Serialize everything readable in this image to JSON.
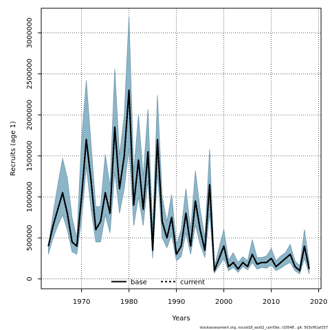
{
  "chart_data": {
    "type": "line",
    "xlabel": "Years",
    "ylabel": "Recruits (age 1)",
    "xlim": [
      1961.5,
      2020.5
    ],
    "ylim": [
      -120000,
      3300000
    ],
    "x_ticks": [
      1970,
      1980,
      1990,
      2000,
      2010,
      2020
    ],
    "y_ticks": [
      0,
      500000,
      1000000,
      1500000,
      2000000,
      2500000,
      3000000
    ],
    "grid": true,
    "legend_position": "bottom-center",
    "colors": {
      "band": "#8db5c8",
      "band_edge": "#6d99ae",
      "line": "#000000",
      "grid": "#333333"
    },
    "x": [
      1963,
      1964,
      1965,
      1966,
      1967,
      1968,
      1969,
      1970,
      1971,
      1972,
      1973,
      1974,
      1975,
      1976,
      1977,
      1978,
      1979,
      1980,
      1981,
      1982,
      1983,
      1984,
      1985,
      1986,
      1987,
      1988,
      1989,
      1990,
      1991,
      1992,
      1993,
      1994,
      1995,
      1996,
      1997,
      1998,
      1999,
      2000,
      2001,
      2002,
      2003,
      2004,
      2005,
      2006,
      2007,
      2008,
      2009,
      2010,
      2011,
      2012,
      2013,
      2014,
      2015,
      2016,
      2017,
      2018
    ],
    "series": [
      {
        "name": "base",
        "style": "solid",
        "values": [
          400000,
          650000,
          850000,
          1050000,
          800000,
          450000,
          400000,
          1000000,
          1700000,
          1200000,
          600000,
          700000,
          1050000,
          800000,
          1850000,
          1100000,
          1500000,
          2300000,
          900000,
          1450000,
          850000,
          1550000,
          350000,
          1700000,
          700000,
          500000,
          750000,
          300000,
          400000,
          800000,
          400000,
          950000,
          600000,
          350000,
          1150000,
          100000,
          250000,
          400000,
          150000,
          200000,
          120000,
          200000,
          150000,
          300000,
          180000,
          200000,
          200000,
          250000,
          150000,
          200000,
          250000,
          300000,
          150000,
          100000,
          400000,
          120000
        ]
      },
      {
        "name": "current",
        "style": "dashed",
        "values": [
          400000,
          650000,
          850000,
          1050000,
          800000,
          450000,
          400000,
          1000000,
          1700000,
          1200000,
          600000,
          700000,
          1050000,
          800000,
          1850000,
          1100000,
          1500000,
          2300000,
          900000,
          1450000,
          850000,
          1550000,
          350000,
          1700000,
          700000,
          500000,
          750000,
          300000,
          400000,
          800000,
          400000,
          950000,
          600000,
          350000,
          1150000,
          100000,
          250000,
          400000,
          150000,
          200000,
          120000,
          200000,
          150000,
          300000,
          180000,
          200000,
          200000,
          250000,
          150000,
          200000,
          250000,
          300000,
          150000,
          100000,
          400000,
          120000
        ]
      }
    ],
    "band_upper": [
      400000,
      800000,
      1150000,
      1470000,
      1230000,
      750000,
      500000,
      1700000,
      2420000,
      1650000,
      880000,
      880000,
      1520000,
      1130000,
      2560000,
      1500000,
      2000000,
      3200000,
      1300000,
      2000000,
      1250000,
      2070000,
      600000,
      2240000,
      1000000,
      700000,
      1030000,
      420000,
      600000,
      1100000,
      600000,
      1320000,
      850000,
      500000,
      1580000,
      150000,
      380000,
      600000,
      230000,
      320000,
      200000,
      270000,
      220000,
      480000,
      260000,
      260000,
      280000,
      370000,
      220000,
      280000,
      320000,
      420000,
      220000,
      160000,
      600000,
      200000
    ],
    "band_lower": [
      300000,
      500000,
      650000,
      780000,
      600000,
      330000,
      300000,
      720000,
      1370000,
      850000,
      450000,
      450000,
      780000,
      560000,
      1300000,
      800000,
      1100000,
      1600000,
      650000,
      1000000,
      650000,
      1200000,
      250000,
      1300000,
      500000,
      380000,
      540000,
      220000,
      270000,
      560000,
      300000,
      660000,
      420000,
      260000,
      800000,
      70000,
      160000,
      250000,
      100000,
      140000,
      80000,
      150000,
      110000,
      200000,
      120000,
      140000,
      130000,
      170000,
      100000,
      130000,
      170000,
      200000,
      100000,
      60000,
      250000,
      60000
    ],
    "footnote": "stockassessment.org,  nscod18_ass02_corrObs,  r10548 , git:  503cf91af157"
  }
}
